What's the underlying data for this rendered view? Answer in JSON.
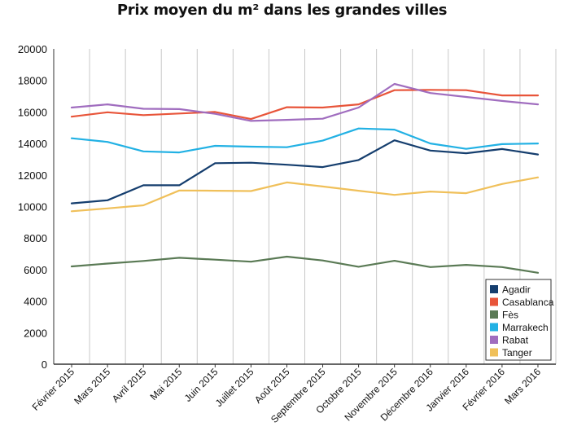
{
  "chart_data": {
    "type": "line",
    "title": "Prix moyen du m² dans les grandes villes",
    "xlabel": "",
    "ylabel": "",
    "ylim": [
      0,
      20000
    ],
    "yticks": [
      0,
      2000,
      4000,
      6000,
      8000,
      10000,
      12000,
      14000,
      16000,
      18000,
      20000
    ],
    "grid": "vertical",
    "legend_position": "bottom-right",
    "categories": [
      "Février 2015",
      "Mars 2015",
      "Avril 2015",
      "Mai 2015",
      "Juin 2015",
      "Juillet 2015",
      "Août 2015",
      "Septembre 2015",
      "Octobre 2015",
      "Novembre 2015",
      "Décembre 2016",
      "Janvier 2016",
      "Février 2016",
      "Mars 2016"
    ],
    "series": [
      {
        "name": "Agadir",
        "color": "#153e6e",
        "values": [
          10200,
          10400,
          11350,
          11350,
          12750,
          12780,
          12650,
          12500,
          12950,
          14200,
          13550,
          13380,
          13650,
          13300
        ]
      },
      {
        "name": "Casablanca",
        "color": "#e8553a",
        "values": [
          15700,
          15980,
          15800,
          15900,
          16000,
          15550,
          16300,
          16280,
          16480,
          17380,
          17400,
          17380,
          17050,
          17050
        ]
      },
      {
        "name": "Fès",
        "color": "#5a7a55",
        "values": [
          6200,
          6380,
          6550,
          6750,
          6630,
          6500,
          6820,
          6580,
          6180,
          6560,
          6160,
          6300,
          6160,
          5800
        ]
      },
      {
        "name": "Marrakech",
        "color": "#22b1e4",
        "values": [
          14330,
          14100,
          13500,
          13430,
          13850,
          13800,
          13760,
          14180,
          14950,
          14880,
          14000,
          13660,
          13960,
          14000
        ]
      },
      {
        "name": "Rabat",
        "color": "#a06dbf",
        "values": [
          16280,
          16480,
          16200,
          16180,
          15880,
          15430,
          15500,
          15570,
          16280,
          17780,
          17200,
          16950,
          16700,
          16480
        ]
      },
      {
        "name": "Tanger",
        "color": "#f0c05a",
        "values": [
          9700,
          9880,
          10080,
          11020,
          11000,
          10980,
          11530,
          11270,
          11000,
          10740,
          10950,
          10850,
          11430,
          11850
        ]
      }
    ]
  }
}
